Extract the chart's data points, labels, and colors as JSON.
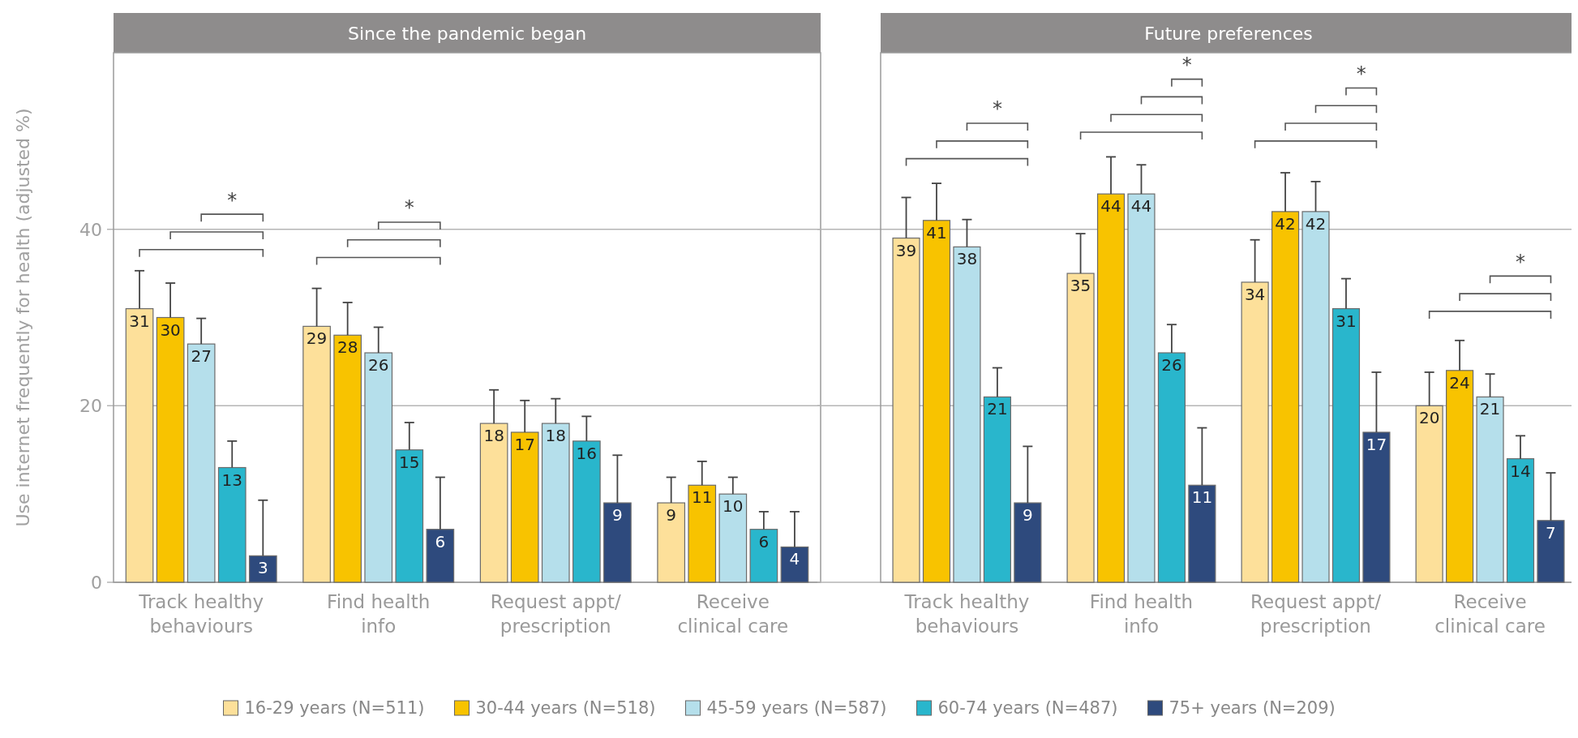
{
  "chart_data": [
    {
      "type": "bar",
      "title": "Since the pandemic began",
      "ylabel": "Use internet frequently for health (adjusted %)",
      "categories": [
        "Track healthy behaviours",
        "Find health info",
        "Request appt/ prescription",
        "Receive clinical care"
      ],
      "ylim": [
        0,
        60
      ],
      "yticks": [
        0,
        20,
        40
      ],
      "grid": "y",
      "legend": "bottom",
      "data_labels": true,
      "annotations": [
        "*",
        "*"
      ],
      "series": [
        {
          "name": "16-29 years (N=511)",
          "color": "#fde09a",
          "values": [
            31,
            29,
            18,
            9
          ],
          "errors": [
            [
              31,
              35.3
            ],
            [
              29,
              33.3
            ],
            [
              18,
              21.8
            ],
            [
              9,
              11.9
            ]
          ]
        },
        {
          "name": "30-44 years (N=518)",
          "color": "#f8c300",
          "values": [
            30,
            28,
            17,
            11
          ],
          "errors": [
            [
              30,
              33.9
            ],
            [
              28,
              31.7
            ],
            [
              17,
              20.6
            ],
            [
              11,
              13.7
            ]
          ]
        },
        {
          "name": "45-59 years (N=587)",
          "color": "#b5dfeb",
          "values": [
            27,
            26,
            18,
            10
          ],
          "errors": [
            [
              27,
              29.9
            ],
            [
              26,
              28.9
            ],
            [
              18,
              20.8
            ],
            [
              10,
              11.9
            ]
          ]
        },
        {
          "name": "60-74 years (N=487)",
          "color": "#29b6cc",
          "values": [
            13,
            15,
            16,
            6
          ],
          "errors": [
            [
              13,
              16.0
            ],
            [
              15,
              18.1
            ],
            [
              16,
              18.8
            ],
            [
              6,
              8.0
            ]
          ]
        },
        {
          "name": "75+ years (N=209)",
          "color": "#2e4a7d",
          "values": [
            3,
            6,
            9,
            4
          ],
          "errors": [
            [
              3,
              9.3
            ],
            [
              6,
              11.9
            ],
            [
              9,
              14.4
            ],
            [
              4,
              8.0
            ]
          ]
        }
      ]
    },
    {
      "type": "bar",
      "title": "Future preferences",
      "categories": [
        "Track healthy behaviours",
        "Find health info",
        "Request appt/ prescription",
        "Receive clinical care"
      ],
      "ylim": [
        0,
        60
      ],
      "yticks": [
        0,
        20,
        40
      ],
      "grid": "y",
      "tick_labels": "x",
      "data_labels": true,
      "annotations": [
        "*",
        "*",
        "*",
        "*"
      ],
      "series": [
        {
          "color": "#fde09a",
          "values": [
            39,
            35,
            34,
            20
          ],
          "errors": [
            [
              39,
              43.6
            ],
            [
              35,
              39.5
            ],
            [
              34,
              38.8
            ],
            [
              20,
              23.8
            ]
          ]
        },
        {
          "color": "#f8c300",
          "values": [
            41,
            44,
            42,
            24
          ],
          "errors": [
            [
              41,
              45.2
            ],
            [
              44,
              48.2
            ],
            [
              42,
              46.4
            ],
            [
              24,
              27.4
            ]
          ]
        },
        {
          "color": "#b5dfeb",
          "values": [
            38,
            44,
            42,
            21
          ],
          "errors": [
            [
              38,
              41.1
            ],
            [
              44,
              47.3
            ],
            [
              42,
              45.4
            ],
            [
              21,
              23.6
            ]
          ]
        },
        {
          "color": "#29b6cc",
          "values": [
            21,
            26,
            31,
            14
          ],
          "errors": [
            [
              21,
              24.3
            ],
            [
              26,
              29.2
            ],
            [
              31,
              34.4
            ],
            [
              14,
              16.6
            ]
          ]
        },
        {
          "color": "#2e4a7d",
          "values": [
            9,
            11,
            17,
            7
          ],
          "errors": [
            [
              9,
              15.4
            ],
            [
              11,
              17.5
            ],
            [
              17,
              23.8
            ],
            [
              7,
              12.4
            ]
          ]
        }
      ]
    }
  ]
}
